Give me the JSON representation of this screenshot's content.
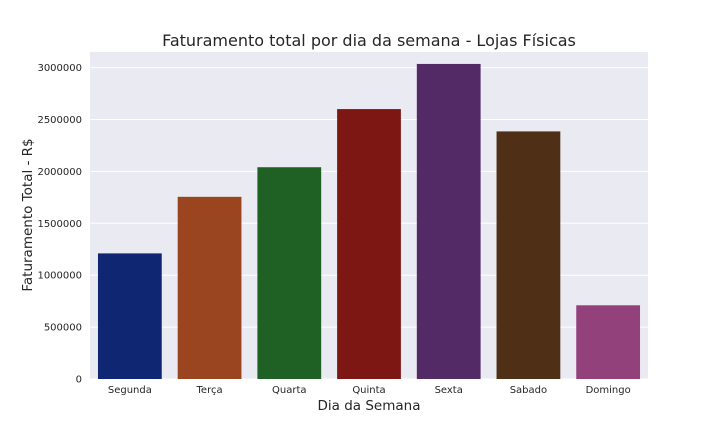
{
  "chart_data": {
    "type": "bar",
    "title": "Faturamento total por dia da semana - Lojas Físicas",
    "xlabel": "Dia da Semana",
    "ylabel": "Faturamento Total - R$",
    "categories": [
      "Segunda",
      "Terça",
      "Quarta",
      "Quinta",
      "Sexta",
      "Sabado",
      "Domingo"
    ],
    "values": [
      1210000,
      1755000,
      2040000,
      2600000,
      3035000,
      2385000,
      710000
    ],
    "colors": [
      "#0f2672",
      "#9b4520",
      "#1f6124",
      "#7c1713",
      "#532a66",
      "#4f3017",
      "#93417b"
    ],
    "ylim": [
      0,
      3150000
    ],
    "yticks": [
      "0",
      "500000",
      "1000000",
      "1500000",
      "2000000",
      "2500000",
      "3000000"
    ],
    "grid": true,
    "background": "#eaeaf2",
    "legend": "none"
  }
}
